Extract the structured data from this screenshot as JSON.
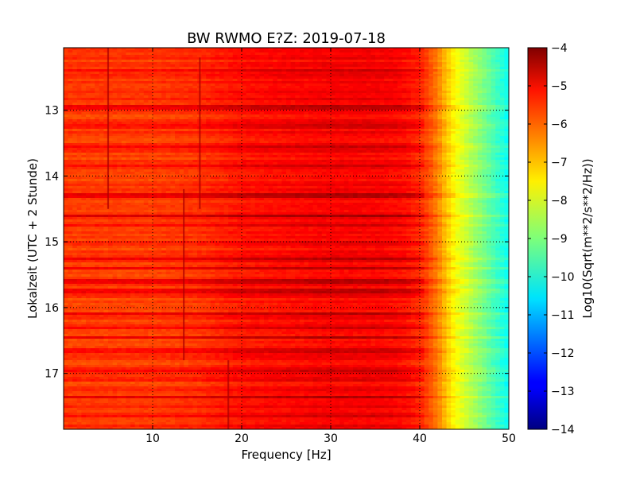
{
  "chart_data": {
    "type": "heatmap",
    "title": "BW RWMO E?Z: 2019-07-18",
    "xlabel": "Frequency [Hz]",
    "ylabel": "Lokalzeit (UTC + 2 Stunde)",
    "xlim": [
      0,
      50
    ],
    "ylim": [
      17.85,
      12.05
    ],
    "x_ticks": [
      10,
      20,
      30,
      40,
      50
    ],
    "x_tick_labels": [
      "10",
      "20",
      "30",
      "40",
      "50"
    ],
    "y_ticks": [
      13,
      14,
      15,
      16,
      17
    ],
    "y_tick_labels": [
      "13",
      "14",
      "15",
      "16",
      "17"
    ],
    "y_inverted": true,
    "grid": true,
    "colorbar": {
      "label": "Log10(Sqrt(m**2/s**2/Hz))",
      "range": [
        -14,
        -4
      ],
      "ticks": [
        -4,
        -5,
        -6,
        -7,
        -8,
        -9,
        -10,
        -11,
        -12,
        -13,
        -14
      ],
      "tick_labels": [
        "−4",
        "−5",
        "−6",
        "−7",
        "−8",
        "−9",
        "−10",
        "−11",
        "−12",
        "−13",
        "−14"
      ],
      "colormap": "jet"
    },
    "spectral_profile": {
      "frequency_hz": [
        0,
        5,
        10,
        15,
        20,
        25,
        30,
        35,
        38,
        40,
        41,
        42,
        43,
        44,
        45,
        46,
        47,
        48,
        49,
        50
      ],
      "level": [
        -5.8,
        -5.8,
        -5.8,
        -5.7,
        -5.4,
        -5.3,
        -5.2,
        -5.2,
        -5.3,
        -5.6,
        -6.0,
        -6.5,
        -7.2,
        -7.8,
        -8.2,
        -8.6,
        -9.0,
        -9.4,
        -9.8,
        -10.2
      ]
    },
    "strong_bands_hours": [
      12.4,
      12.95,
      13.25,
      13.55,
      13.85,
      14.3,
      14.6,
      14.75,
      15.0,
      15.25,
      15.4,
      15.6,
      15.75,
      16.1,
      16.3,
      16.45,
      16.65,
      16.95,
      17.1,
      17.35,
      17.65
    ],
    "vertical_lines": [
      {
        "frequency_hz": 5.0,
        "from_hour": 12.05,
        "to_hour": 14.5
      },
      {
        "frequency_hz": 13.5,
        "from_hour": 14.2,
        "to_hour": 16.8
      },
      {
        "frequency_hz": 15.3,
        "from_hour": 12.2,
        "to_hour": 14.5
      },
      {
        "frequency_hz": 18.5,
        "from_hour": 16.8,
        "to_hour": 17.85
      }
    ]
  }
}
